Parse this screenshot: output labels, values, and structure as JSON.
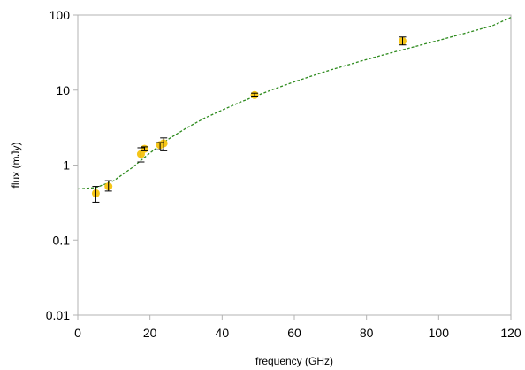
{
  "chart_data": {
    "type": "scatter",
    "title": "",
    "xlabel": "frequency (GHz)",
    "ylabel": "flux (mJy)",
    "xlim": [
      0,
      120
    ],
    "ylim": [
      0.01,
      100
    ],
    "yscale": "log",
    "grid": false,
    "x_ticks": [
      "0",
      "20",
      "40",
      "60",
      "80",
      "100",
      "120"
    ],
    "y_ticks": [
      "0.01",
      "0.1",
      "1",
      "10",
      "100"
    ],
    "x_tick_values": [
      0,
      20,
      40,
      60,
      80,
      100,
      120
    ],
    "y_tick_values": [
      0.01,
      0.1,
      1,
      10,
      100
    ],
    "marker_color": "#f5c518",
    "errorbar_color": "#000000",
    "fit_color": "#2e8b1e",
    "series": [
      {
        "points": [
          {
            "x": 5.0,
            "y": 0.42,
            "ylo": 0.32,
            "yhi": 0.52
          },
          {
            "x": 8.5,
            "y": 0.52,
            "ylo": 0.45,
            "yhi": 0.62
          },
          {
            "x": 17.5,
            "y": 1.4,
            "ylo": 1.1,
            "yhi": 1.7
          },
          {
            "x": 18.5,
            "y": 1.65,
            "ylo": 1.55,
            "yhi": 1.75
          },
          {
            "x": 22.8,
            "y": 1.85,
            "ylo": 1.6,
            "yhi": 2.0
          },
          {
            "x": 23.8,
            "y": 1.95,
            "ylo": 1.55,
            "yhi": 2.3
          },
          {
            "x": 49.0,
            "y": 8.6,
            "ylo": 8.1,
            "yhi": 9.1
          },
          {
            "x": 90.0,
            "y": 45.0,
            "ylo": 40.0,
            "yhi": 51.0
          }
        ]
      },
      {
        "type": "fit-line",
        "x": [
          0,
          5,
          10,
          15,
          20,
          25,
          30,
          35,
          40,
          45,
          50,
          55,
          60,
          65,
          70,
          75,
          80,
          85,
          90,
          95,
          100,
          105,
          110,
          115,
          120
        ],
        "y": [
          0.48,
          0.5,
          0.62,
          0.92,
          1.45,
          2.2,
          3.1,
          4.2,
          5.4,
          6.9,
          8.6,
          10.6,
          12.9,
          15.5,
          18.5,
          21.8,
          25.6,
          29.8,
          34.5,
          39.8,
          46.0,
          53.5,
          62.0,
          72.5,
          93.0
        ]
      }
    ]
  }
}
